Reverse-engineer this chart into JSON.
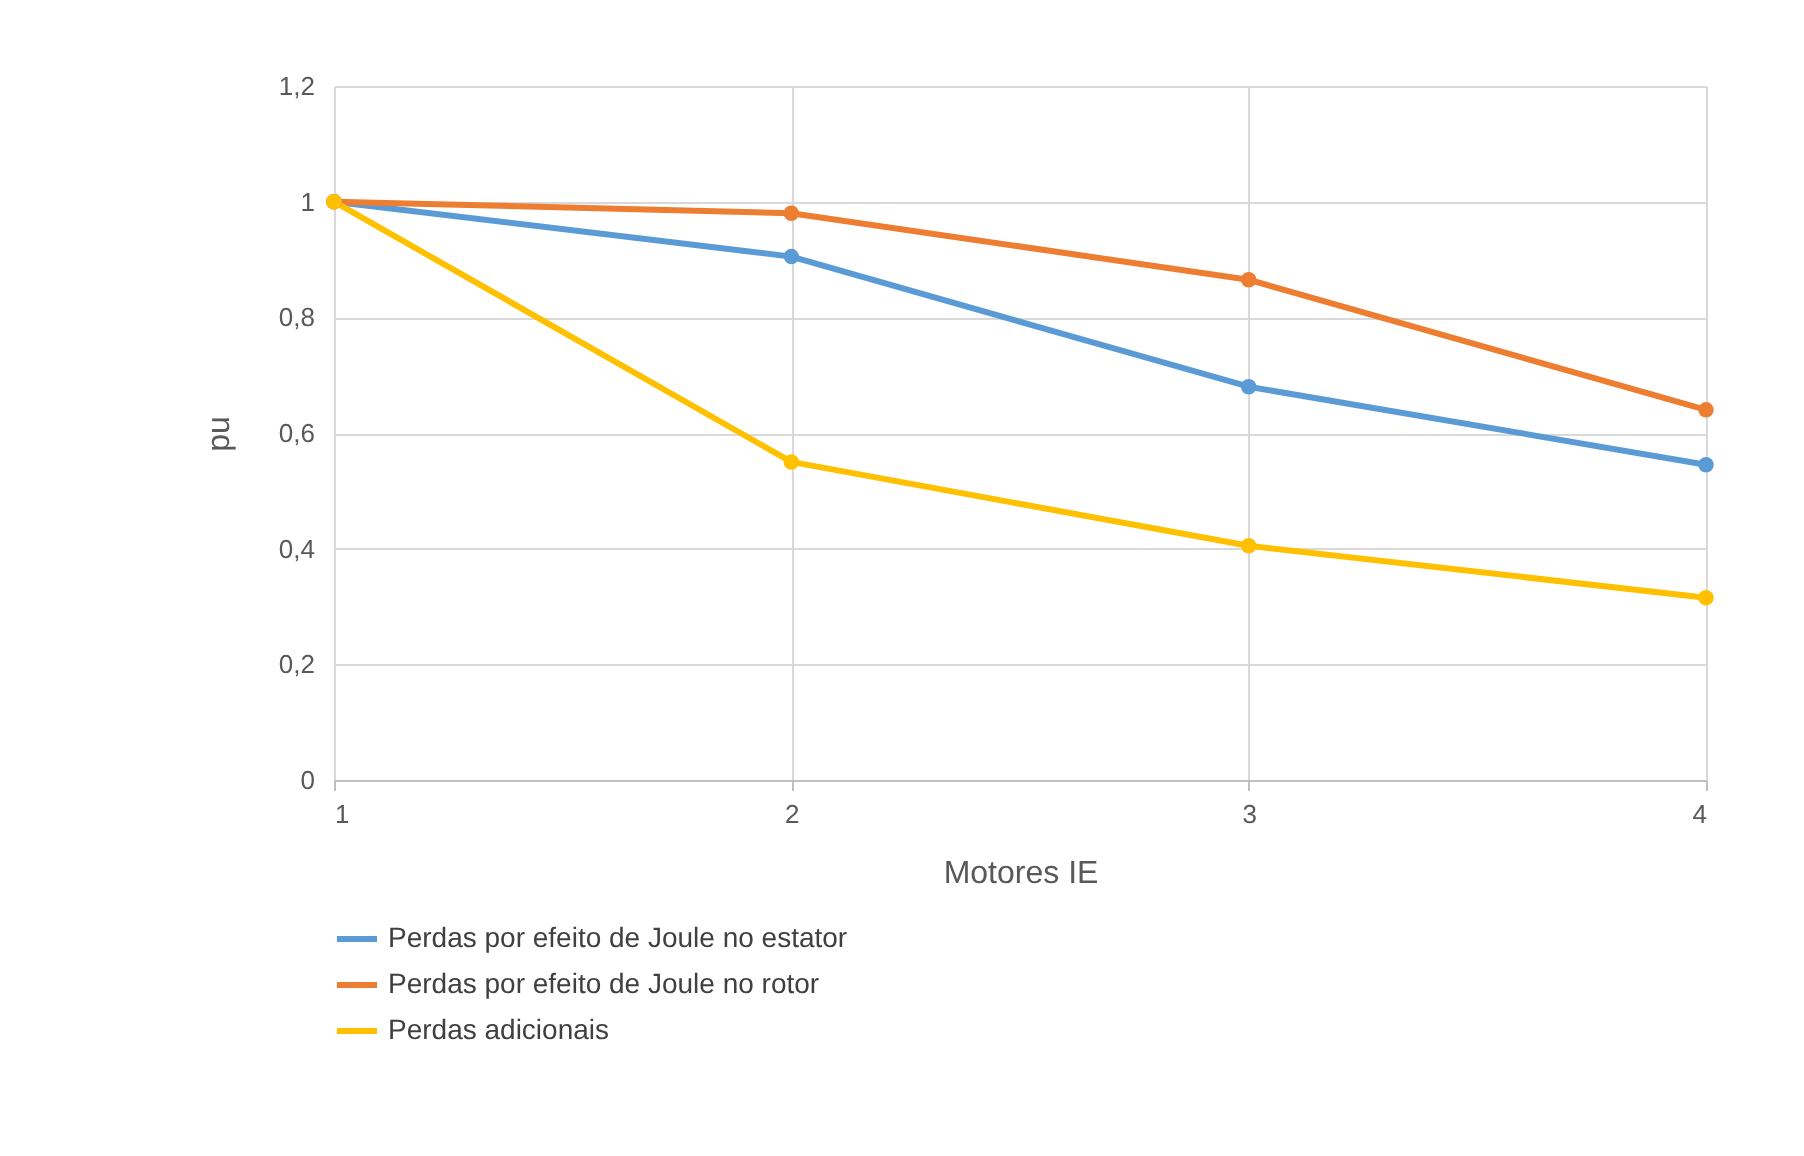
{
  "chart_data": {
    "type": "line",
    "xlabel": "Motores IE",
    "ylabel": "pu",
    "x": [
      1,
      2,
      3,
      4
    ],
    "xlim": [
      1,
      4
    ],
    "xticks": [
      1,
      2,
      3,
      4
    ],
    "ylim": [
      0,
      1.2
    ],
    "yticks": [
      {
        "value": 0,
        "label": "0"
      },
      {
        "value": 0.2,
        "label": "0,2"
      },
      {
        "value": 0.4,
        "label": "0,4"
      },
      {
        "value": 0.6,
        "label": "0,6"
      },
      {
        "value": 0.8,
        "label": "0,8"
      },
      {
        "value": 1,
        "label": "1"
      },
      {
        "value": 1.2,
        "label": "1,2"
      }
    ],
    "series": [
      {
        "name": "Perdas por efeito de Joule no estator",
        "color": "#5b9bd5",
        "values": [
          1,
          0.905,
          0.68,
          0.545
        ]
      },
      {
        "name": "Perdas por efeito de Joule no rotor",
        "color": "#ed7d31",
        "values": [
          1,
          0.98,
          0.865,
          0.64
        ]
      },
      {
        "name": "Perdas adicionais",
        "color": "#ffc000",
        "values": [
          1,
          0.55,
          0.405,
          0.315
        ]
      }
    ],
    "grid": true,
    "legend": "bottom",
    "marker": "circle",
    "line_style": "solid"
  }
}
